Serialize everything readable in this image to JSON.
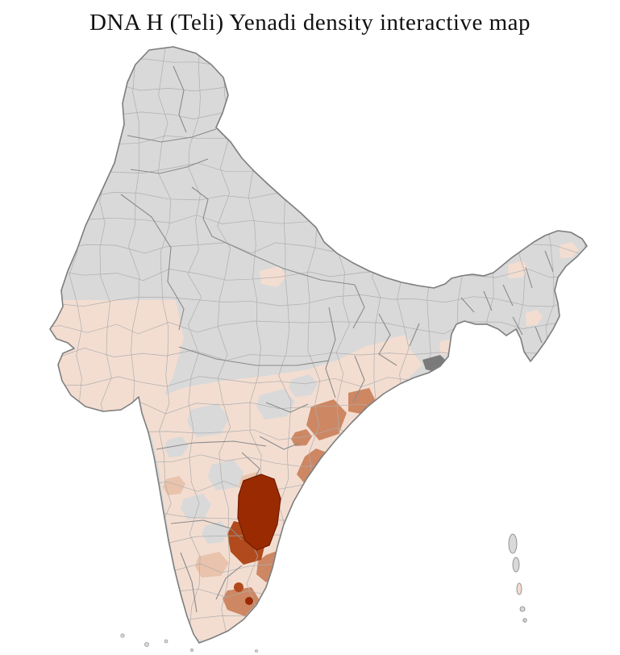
{
  "title": "DNA H (Teli) Yenadi density interactive map",
  "map": {
    "name": "india-district-density-map",
    "colors": {
      "background": "#ffffff",
      "no_data": "#d9d9d9",
      "low": "#f3ddd1",
      "low_mid": "#e9c3ac",
      "medium": "#cd8763",
      "high": "#b14a1c",
      "highest": "#9a2a02",
      "highest_border": "#6e1c00",
      "outline": "#7f7f7f",
      "state_border": "#8a8a8a",
      "district_border": "#aeaeae",
      "delta_shade": "#7a7a7a"
    },
    "regions": [
      {
        "name": "Northern and central India",
        "density_level": "no-data"
      },
      {
        "name": "Gujarat and Saurashtra",
        "density_level": "low"
      },
      {
        "name": "Peninsular India",
        "density_level": "low"
      },
      {
        "name": "Coastal Andhra Pradesh",
        "density_level": "medium"
      },
      {
        "name": "Southern Andhra Pradesh",
        "density_level": "high"
      },
      {
        "name": "Nellore district hotspot",
        "density_level": "highest"
      },
      {
        "name": "Northern Tamil Nadu districts",
        "density_level": "medium"
      },
      {
        "name": "Ganges delta",
        "density_level": "shaded"
      },
      {
        "name": "Andaman and Nicobar Islands",
        "density_level": "no-data"
      },
      {
        "name": "Lakshadweep",
        "density_level": "no-data"
      }
    ]
  }
}
